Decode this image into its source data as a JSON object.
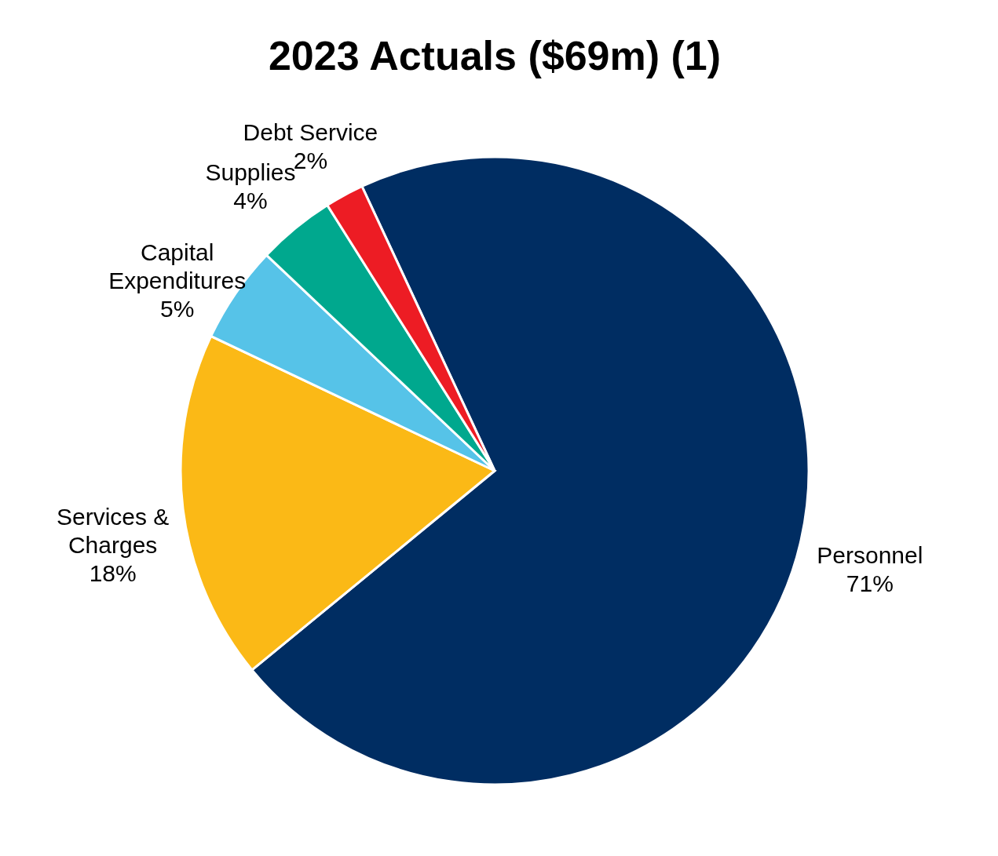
{
  "chart_data": {
    "type": "pie",
    "title": "2023 Actuals ($69m) (1)",
    "categories": [
      "Personnel",
      "Services & Charges",
      "Capital Expenditures",
      "Supplies",
      "Debt Service"
    ],
    "values": [
      71,
      18,
      5,
      4,
      2
    ],
    "value_labels": [
      "71%",
      "18%",
      "5%",
      "4%",
      "2%"
    ],
    "colors": [
      "#002d62",
      "#fbb916",
      "#56c3e8",
      "#00a88e",
      "#ed1c24"
    ],
    "legend": false
  }
}
